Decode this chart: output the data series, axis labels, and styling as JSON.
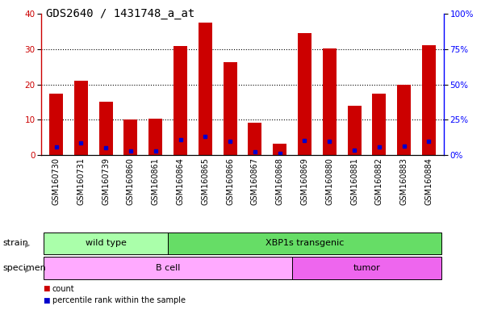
{
  "title": "GDS2640 / 1431748_a_at",
  "samples": [
    "GSM160730",
    "GSM160731",
    "GSM160739",
    "GSM160860",
    "GSM160861",
    "GSM160864",
    "GSM160865",
    "GSM160866",
    "GSM160867",
    "GSM160868",
    "GSM160869",
    "GSM160880",
    "GSM160881",
    "GSM160882",
    "GSM160883",
    "GSM160884"
  ],
  "counts": [
    17.5,
    21.0,
    15.2,
    10.0,
    10.2,
    31.0,
    37.5,
    26.3,
    9.2,
    3.3,
    34.5,
    30.2,
    14.0,
    17.5,
    20.0,
    31.2
  ],
  "percentile_ranks": [
    6.0,
    8.5,
    5.0,
    3.0,
    3.0,
    11.0,
    13.0,
    9.5,
    2.5,
    1.0,
    10.5,
    10.0,
    3.5,
    6.0,
    6.5,
    9.5
  ],
  "ylim_left": [
    0,
    40
  ],
  "ylim_right": [
    0,
    100
  ],
  "yticks_left": [
    0,
    10,
    20,
    30,
    40
  ],
  "yticks_right": [
    0,
    25,
    50,
    75,
    100
  ],
  "bar_color": "#cc0000",
  "marker_color": "#0000cc",
  "strain_groups": [
    {
      "label": "wild type",
      "start": 0,
      "end": 4,
      "color": "#aaffaa"
    },
    {
      "label": "XBP1s transgenic",
      "start": 5,
      "end": 15,
      "color": "#66dd66"
    }
  ],
  "specimen_groups": [
    {
      "label": "B cell",
      "start": 0,
      "end": 9,
      "color": "#ffaaff"
    },
    {
      "label": "tumor",
      "start": 10,
      "end": 15,
      "color": "#ee66ee"
    }
  ],
  "strain_label": "strain",
  "specimen_label": "specimen",
  "legend_count": "count",
  "legend_pct": "percentile rank within the sample",
  "title_fontsize": 10,
  "tick_fontsize": 7,
  "label_fontsize": 8,
  "annot_fontsize": 8
}
